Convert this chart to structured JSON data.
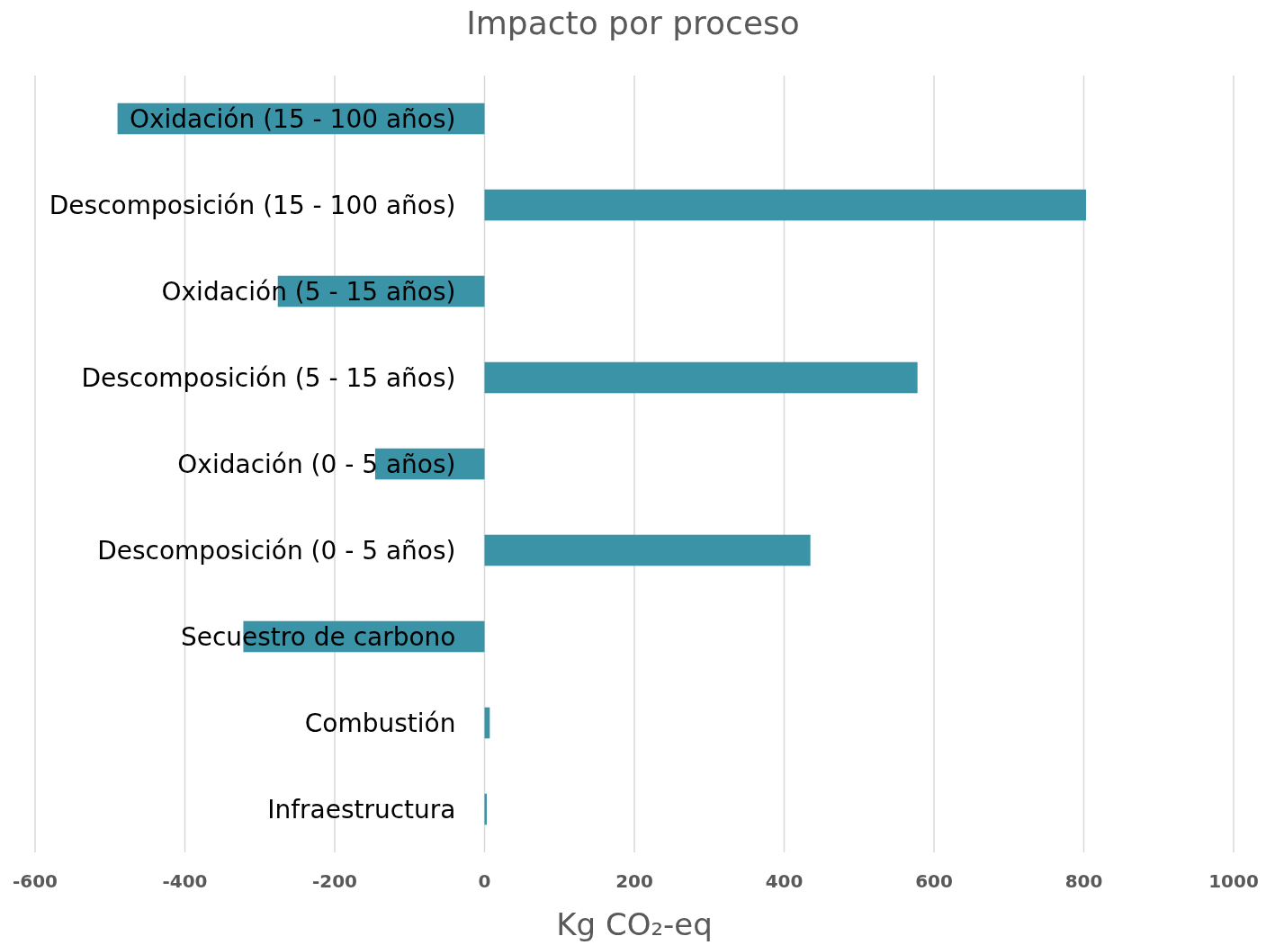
{
  "chart_data": {
    "type": "bar",
    "orientation": "horizontal",
    "title": "Impacto por proceso",
    "xlabel": "Kg CO₂-eq",
    "categories": [
      "Oxidación (15 - 100 años)",
      "Descomposición (15 - 100 años)",
      "Oxidación (5 - 15 años)",
      "Descomposición (5 - 15 años)",
      "Oxidación (0 - 5 años)",
      "Descomposición (0 - 5 años)",
      "Secuestro de carbono",
      "Combustión",
      "Infraestructura"
    ],
    "values": [
      -490,
      803,
      -276,
      578,
      -146,
      435,
      -322,
      7,
      3
    ],
    "color": "#3a93a7",
    "xlim": [
      -600,
      1000
    ],
    "xticks": [
      -600,
      -400,
      -200,
      0,
      200,
      400,
      600,
      800,
      1000
    ],
    "grid": "x"
  }
}
